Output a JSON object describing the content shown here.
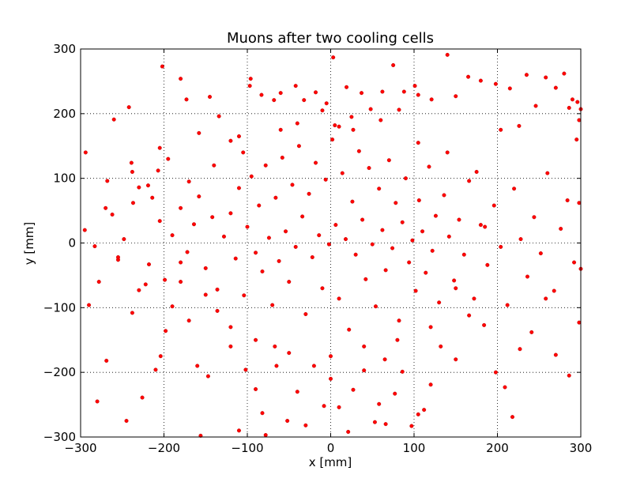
{
  "chart_data": {
    "type": "scatter",
    "title": "Muons after two cooling cells",
    "xlabel": "x [mm]",
    "ylabel": "y [mm]",
    "xlim": [
      -300,
      300
    ],
    "ylim": [
      -300,
      300
    ],
    "x_ticks": [
      -300,
      -200,
      -100,
      0,
      100,
      200,
      300
    ],
    "y_ticks": [
      -300,
      -200,
      -100,
      0,
      100,
      200,
      300
    ],
    "grid": true,
    "legend": "none",
    "point_color": "#ff0000",
    "point_edge_color": "#b00000",
    "series": [
      {
        "points": [
          [
            -294,
            140
          ],
          [
            -268,
            96
          ],
          [
            -260,
            191
          ],
          [
            -242,
            210
          ],
          [
            -239,
            124
          ],
          [
            -238,
            110
          ],
          [
            -230,
            86
          ],
          [
            -219,
            89
          ],
          [
            -207,
            112
          ],
          [
            -205,
            147
          ],
          [
            -202,
            273
          ],
          [
            -195,
            130
          ],
          [
            -180,
            254
          ],
          [
            -173,
            222
          ],
          [
            -158,
            170
          ],
          [
            -145,
            226
          ],
          [
            -134,
            196
          ],
          [
            -120,
            158
          ],
          [
            -110,
            165
          ],
          [
            -97,
            243
          ],
          [
            -96,
            254
          ],
          [
            -83,
            229
          ],
          [
            -68,
            221
          ],
          [
            -60,
            232
          ],
          [
            -42,
            243
          ],
          [
            -32,
            221
          ],
          [
            -18,
            233
          ],
          [
            -5,
            216
          ],
          [
            3,
            287
          ],
          [
            5,
            182
          ],
          [
            19,
            241
          ],
          [
            27,
            175
          ],
          [
            37,
            232
          ],
          [
            48,
            207
          ],
          [
            62,
            234
          ],
          [
            75,
            275
          ],
          [
            82,
            206
          ],
          [
            88,
            234
          ],
          [
            101,
            243
          ],
          [
            105,
            229
          ],
          [
            121,
            222
          ],
          [
            140,
            291
          ],
          [
            150,
            227
          ],
          [
            165,
            257
          ],
          [
            180,
            251
          ],
          [
            198,
            246
          ],
          [
            204,
            175
          ],
          [
            215,
            239
          ],
          [
            226,
            181
          ],
          [
            235,
            260
          ],
          [
            246,
            212
          ],
          [
            258,
            256
          ],
          [
            270,
            240
          ],
          [
            280,
            262
          ],
          [
            286,
            209
          ],
          [
            290,
            222
          ],
          [
            296,
            218
          ],
          [
            298,
            190
          ],
          [
            300,
            207
          ],
          [
            295,
            160
          ],
          [
            -290,
            -96
          ],
          [
            -280,
            -245
          ],
          [
            -278,
            -60
          ],
          [
            -269,
            -182
          ],
          [
            -255,
            -26
          ],
          [
            -245,
            -275
          ],
          [
            -238,
            -108
          ],
          [
            -230,
            -73
          ],
          [
            -226,
            -239
          ],
          [
            -218,
            -33
          ],
          [
            -210,
            -196
          ],
          [
            -204,
            -175
          ],
          [
            -198,
            -136
          ],
          [
            -190,
            -98
          ],
          [
            -180,
            -60
          ],
          [
            -170,
            -120
          ],
          [
            -160,
            -190
          ],
          [
            -156,
            -298
          ],
          [
            -147,
            -206
          ],
          [
            -136,
            -105
          ],
          [
            -120,
            -160
          ],
          [
            -110,
            -290
          ],
          [
            -102,
            -196
          ],
          [
            -90,
            -226
          ],
          [
            -82,
            -263
          ],
          [
            -78,
            -297
          ],
          [
            -67,
            -160
          ],
          [
            -52,
            -275
          ],
          [
            -40,
            -230
          ],
          [
            -30,
            -282
          ],
          [
            -20,
            -190
          ],
          [
            -8,
            -252
          ],
          [
            0,
            -210
          ],
          [
            10,
            -254
          ],
          [
            21,
            -292
          ],
          [
            27,
            -227
          ],
          [
            40,
            -197
          ],
          [
            53,
            -277
          ],
          [
            58,
            -249
          ],
          [
            66,
            -280
          ],
          [
            77,
            -233
          ],
          [
            86,
            -199
          ],
          [
            97,
            -283
          ],
          [
            105,
            -265
          ],
          [
            112,
            -258
          ],
          [
            120,
            -219
          ],
          [
            132,
            -160
          ],
          [
            150,
            -180
          ],
          [
            166,
            -112
          ],
          [
            184,
            -127
          ],
          [
            198,
            -200
          ],
          [
            209,
            -223
          ],
          [
            218,
            -269
          ],
          [
            227,
            -164
          ],
          [
            241,
            -138
          ],
          [
            258,
            -86
          ],
          [
            270,
            -173
          ],
          [
            286,
            -205
          ],
          [
            298,
            -123
          ],
          [
            300,
            -40
          ],
          [
            -295,
            20
          ],
          [
            -283,
            -5
          ],
          [
            -270,
            54
          ],
          [
            -262,
            44
          ],
          [
            -255,
            -22
          ],
          [
            -248,
            6
          ],
          [
            -237,
            62
          ],
          [
            -222,
            -64
          ],
          [
            -214,
            70
          ],
          [
            -205,
            34
          ],
          [
            -199,
            -57
          ],
          [
            -190,
            12
          ],
          [
            -180,
            54
          ],
          [
            -172,
            -14
          ],
          [
            -164,
            29
          ],
          [
            -158,
            72
          ],
          [
            -150,
            -39
          ],
          [
            -142,
            40
          ],
          [
            -136,
            -72
          ],
          [
            -128,
            10
          ],
          [
            -120,
            46
          ],
          [
            -114,
            -24
          ],
          [
            -110,
            85
          ],
          [
            -104,
            -81
          ],
          [
            -100,
            25
          ],
          [
            -95,
            103
          ],
          [
            -90,
            -15
          ],
          [
            -86,
            58
          ],
          [
            -82,
            -44
          ],
          [
            -78,
            120
          ],
          [
            -74,
            8
          ],
          [
            -70,
            -96
          ],
          [
            -66,
            70
          ],
          [
            -62,
            -28
          ],
          [
            -58,
            132
          ],
          [
            -54,
            18
          ],
          [
            -50,
            -60
          ],
          [
            -46,
            90
          ],
          [
            -42,
            -6
          ],
          [
            -38,
            150
          ],
          [
            -34,
            41
          ],
          [
            -30,
            -110
          ],
          [
            -26,
            76
          ],
          [
            -22,
            -22
          ],
          [
            -18,
            124
          ],
          [
            -14,
            12
          ],
          [
            -10,
            -70
          ],
          [
            -6,
            98
          ],
          [
            -2,
            -2
          ],
          [
            2,
            160
          ],
          [
            6,
            28
          ],
          [
            10,
            -86
          ],
          [
            14,
            108
          ],
          [
            18,
            6
          ],
          [
            22,
            -134
          ],
          [
            26,
            64
          ],
          [
            30,
            -18
          ],
          [
            34,
            142
          ],
          [
            38,
            36
          ],
          [
            42,
            -56
          ],
          [
            46,
            116
          ],
          [
            50,
            -2
          ],
          [
            54,
            -98
          ],
          [
            58,
            84
          ],
          [
            62,
            20
          ],
          [
            66,
            -42
          ],
          [
            70,
            128
          ],
          [
            74,
            -8
          ],
          [
            78,
            62
          ],
          [
            82,
            -120
          ],
          [
            86,
            32
          ],
          [
            90,
            100
          ],
          [
            94,
            -30
          ],
          [
            98,
            4
          ],
          [
            102,
            -74
          ],
          [
            106,
            66
          ],
          [
            110,
            18
          ],
          [
            114,
            -46
          ],
          [
            118,
            118
          ],
          [
            122,
            -12
          ],
          [
            126,
            42
          ],
          [
            130,
            -92
          ],
          [
            136,
            74
          ],
          [
            142,
            10
          ],
          [
            148,
            -58
          ],
          [
            154,
            36
          ],
          [
            160,
            -18
          ],
          [
            166,
            96
          ],
          [
            172,
            -86
          ],
          [
            180,
            28
          ],
          [
            188,
            -34
          ],
          [
            196,
            58
          ],
          [
            204,
            -6
          ],
          [
            212,
            -96
          ],
          [
            220,
            84
          ],
          [
            228,
            6
          ],
          [
            236,
            -52
          ],
          [
            244,
            40
          ],
          [
            252,
            -16
          ],
          [
            260,
            108
          ],
          [
            268,
            -74
          ],
          [
            276,
            22
          ],
          [
            284,
            66
          ],
          [
            292,
            -30
          ],
          [
            298,
            62
          ],
          [
            -40,
            185
          ],
          [
            -10,
            205
          ],
          [
            25,
            195
          ],
          [
            60,
            190
          ],
          [
            -60,
            175
          ],
          [
            -105,
            140
          ],
          [
            105,
            155
          ],
          [
            140,
            140
          ],
          [
            -140,
            120
          ],
          [
            -170,
            95
          ],
          [
            175,
            110
          ],
          [
            -90,
            -150
          ],
          [
            -50,
            -170
          ],
          [
            0,
            -175
          ],
          [
            40,
            -160
          ],
          [
            80,
            -150
          ],
          [
            -120,
            -130
          ],
          [
            120,
            -130
          ],
          [
            -150,
            -80
          ],
          [
            150,
            -70
          ],
          [
            -180,
            -30
          ],
          [
            185,
            25
          ],
          [
            -65,
            -190
          ],
          [
            65,
            -180
          ],
          [
            10,
            180
          ]
        ]
      }
    ]
  }
}
